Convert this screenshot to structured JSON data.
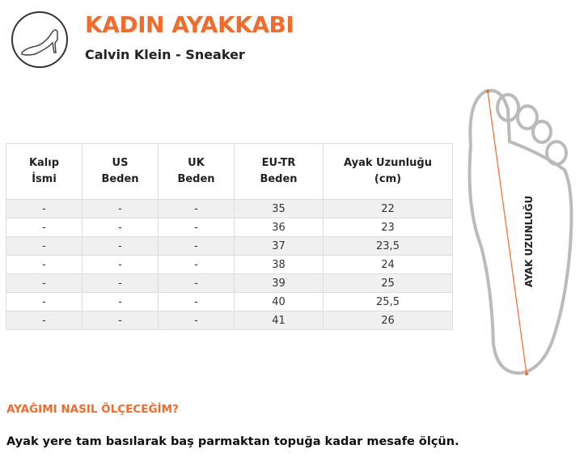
{
  "header": {
    "title": "KADIN AYAKKABI",
    "subtitle": "Calvin Klein - Sneaker",
    "logo_icon": "high-heel-shoe-icon"
  },
  "table": {
    "headers": [
      [
        "Kalıp",
        "İsmi"
      ],
      [
        "US",
        "Beden"
      ],
      [
        "UK",
        "Beden"
      ],
      [
        "EU-TR",
        "Beden"
      ],
      [
        "Ayak Uzunluğu",
        "(cm)"
      ]
    ],
    "rows": [
      [
        "-",
        "-",
        "-",
        "35",
        "22"
      ],
      [
        "-",
        "-",
        "-",
        "36",
        "23"
      ],
      [
        "-",
        "-",
        "-",
        "37",
        "23,5"
      ],
      [
        "-",
        "-",
        "-",
        "38",
        "24"
      ],
      [
        "-",
        "-",
        "-",
        "39",
        "25"
      ],
      [
        "-",
        "-",
        "-",
        "40",
        "25,5"
      ],
      [
        "-",
        "-",
        "-",
        "41",
        "26"
      ]
    ]
  },
  "foot_diagram": {
    "label": "AYAK UZUNLUĞU",
    "line_color": "#f26b2a"
  },
  "howto": {
    "question": "AYAĞIMI NASIL ÖLÇECEĞİM?",
    "answer": "Ayak yere tam basılarak baş parmaktan topuğa kadar mesafe ölçün."
  },
  "colors": {
    "accent": "#f26b2a",
    "row_alt": "#f0f0f0"
  }
}
